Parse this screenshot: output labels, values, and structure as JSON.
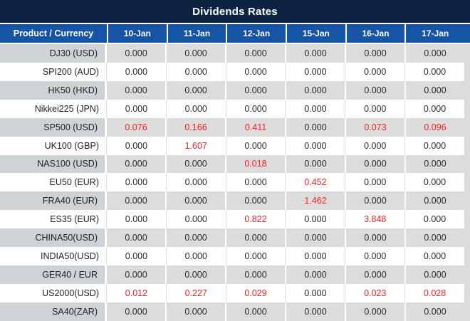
{
  "chart_data": {
    "type": "table",
    "title": "Dividends Rates",
    "corner_header": "Product / Currency",
    "date_columns": [
      "10-Jan",
      "11-Jan",
      "12-Jan",
      "15-Jan",
      "16-Jan",
      "17-Jan"
    ],
    "rows": [
      {
        "product": "DJ30 (USD)",
        "values": [
          "0.000",
          "0.000",
          "0.000",
          "0.000",
          "0.000",
          "0.000"
        ]
      },
      {
        "product": "SPI200 (AUD)",
        "values": [
          "0.000",
          "0.000",
          "0.000",
          "0.000",
          "0.000",
          "0.000"
        ]
      },
      {
        "product": "HK50 (HKD)",
        "values": [
          "0.000",
          "0.000",
          "0.000",
          "0.000",
          "0.000",
          "0.000"
        ]
      },
      {
        "product": "Nikkei225 (JPN)",
        "values": [
          "0.000",
          "0.000",
          "0.000",
          "0.000",
          "0.000",
          "0.000"
        ]
      },
      {
        "product": "SP500 (USD)",
        "values": [
          "0.076",
          "0.166",
          "0.411",
          "0.000",
          "0.073",
          "0.096"
        ]
      },
      {
        "product": "UK100 (GBP)",
        "values": [
          "0.000",
          "1.607",
          "0.000",
          "0.000",
          "0.000",
          "0.000"
        ]
      },
      {
        "product": "NAS100 (USD)",
        "values": [
          "0.000",
          "0.000",
          "0.018",
          "0.000",
          "0.000",
          "0.000"
        ]
      },
      {
        "product": "EU50 (EUR)",
        "values": [
          "0.000",
          "0.000",
          "0.000",
          "0.452",
          "0.000",
          "0.000"
        ]
      },
      {
        "product": "FRA40 (EUR)",
        "values": [
          "0.000",
          "0.000",
          "0.000",
          "1.462",
          "0.000",
          "0.000"
        ]
      },
      {
        "product": "ES35 (EUR)",
        "values": [
          "0.000",
          "0.000",
          "0.822",
          "0.000",
          "3.848",
          "0.000"
        ]
      },
      {
        "product": "CHINA50(USD)",
        "values": [
          "0.000",
          "0.000",
          "0.000",
          "0.000",
          "0.000",
          "0.000"
        ]
      },
      {
        "product": "INDIA50(USD)",
        "values": [
          "0.000",
          "0.000",
          "0.000",
          "0.000",
          "0.000",
          "0.000"
        ]
      },
      {
        "product": "GER40 / EUR",
        "values": [
          "0.000",
          "0.000",
          "0.000",
          "0.000",
          "0.000",
          "0.000"
        ]
      },
      {
        "product": "US2000(USD)",
        "values": [
          "0.012",
          "0.227",
          "0.029",
          "0.000",
          "0.023",
          "0.028"
        ]
      },
      {
        "product": "SA40(ZAR)",
        "values": [
          "0.000",
          "0.000",
          "0.000",
          "0.000",
          "0.000",
          "0.000"
        ]
      }
    ],
    "layout_hints": {
      "row_striping": "alternating gray/white starting gray",
      "nonzero_values_highlighted": true
    }
  },
  "colors": {
    "title_bar_bg": "#0d2342",
    "header_bg": "#1655a6",
    "header_text": "#ffffff",
    "row_gray_bg": "#dcdcdc",
    "row_label_gray_bg": "#ced3d6",
    "value_text": "#2b2b2b",
    "nonzero_value_text": "#fa1d21"
  }
}
